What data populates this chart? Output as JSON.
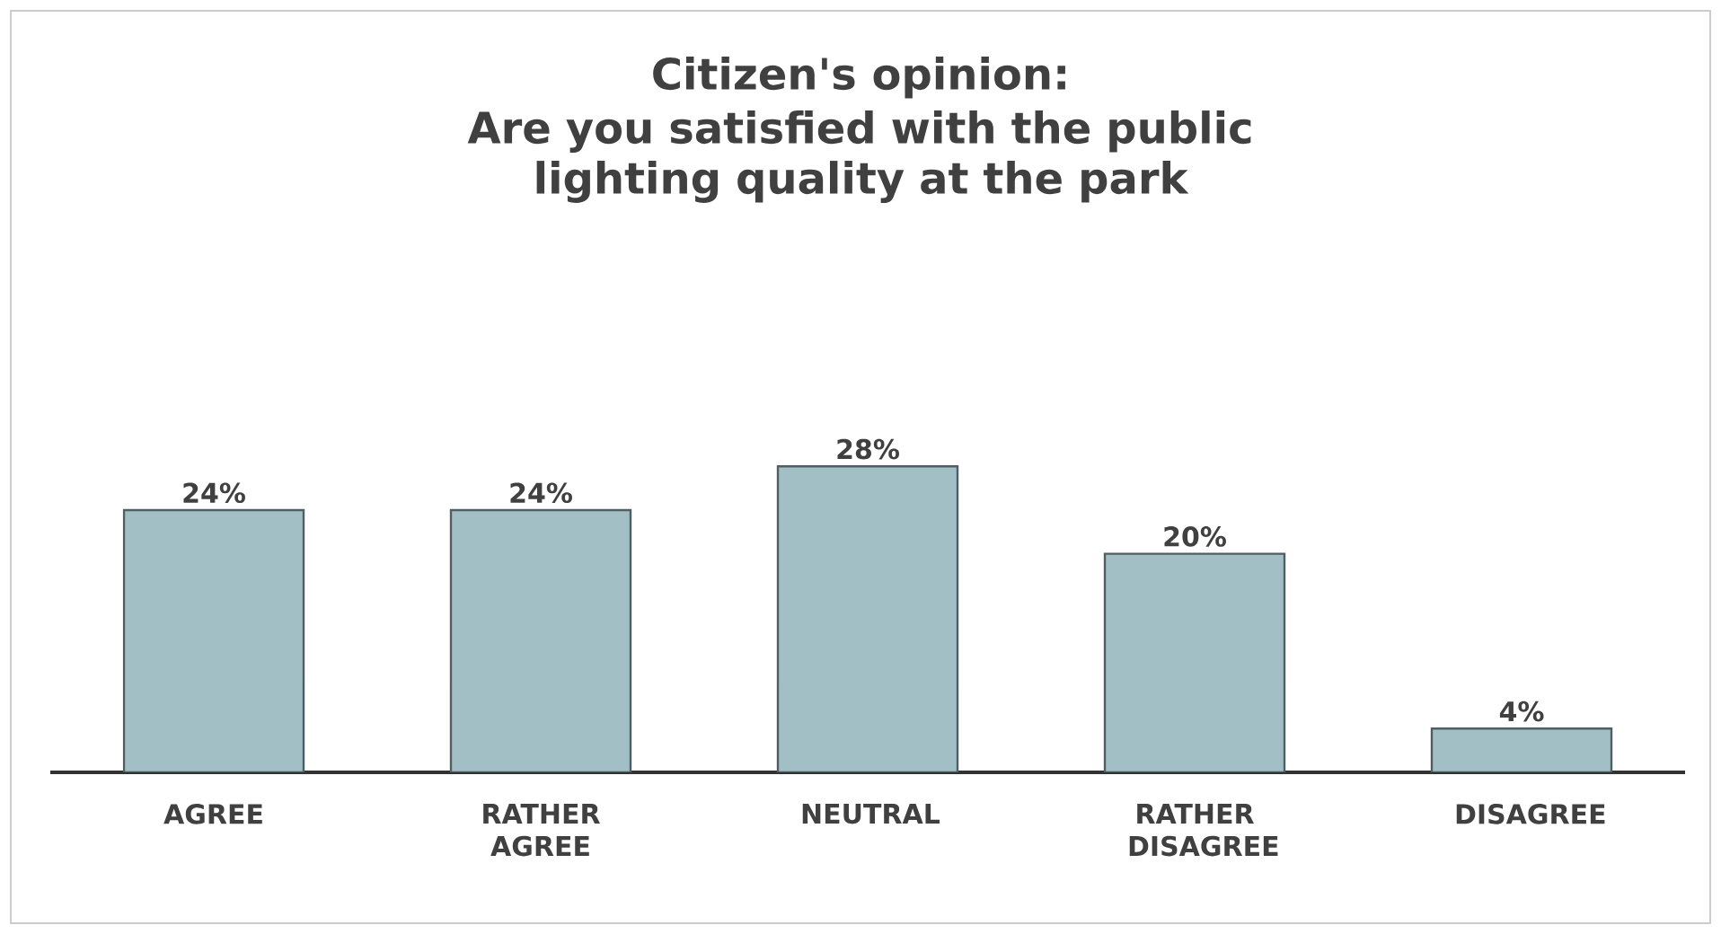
{
  "chart_data": {
    "type": "bar",
    "title": "Citizen's opinion:",
    "subtitle": "Are you satisfied with the public lighting quality at the park",
    "categories": [
      "AGREE",
      "RATHER AGREE",
      "NEUTRAL",
      "RATHER DISAGREE",
      "DISAGREE"
    ],
    "values": [
      24,
      24,
      28,
      20,
      4
    ],
    "value_labels": [
      "24%",
      "24%",
      "28%",
      "20%",
      "4%"
    ],
    "color": "#a3bfc6"
  }
}
